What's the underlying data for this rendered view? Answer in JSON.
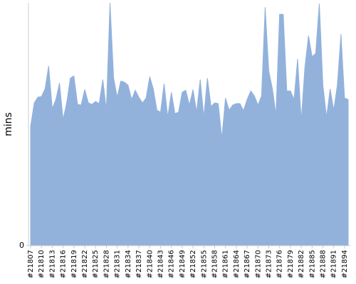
{
  "chart_data": {
    "type": "area",
    "y_label": "mins",
    "color": "#92b2dc",
    "ylim": [
      0,
      100
    ],
    "yticks": [
      0
    ],
    "categories": [
      "#21807",
      null,
      null,
      "#21810",
      null,
      null,
      "#21813",
      null,
      null,
      "#21816",
      null,
      null,
      "#21819",
      null,
      null,
      "#21822",
      null,
      null,
      "#21825",
      null,
      null,
      "#21828",
      null,
      null,
      "#21831",
      null,
      null,
      "#21834",
      null,
      null,
      "#21837",
      null,
      null,
      "#21840",
      null,
      null,
      "#21843",
      null,
      null,
      "#21846",
      null,
      null,
      "#21849",
      null,
      null,
      "#21852",
      null,
      null,
      "#21855",
      null,
      null,
      "#21858",
      null,
      null,
      "#21861",
      null,
      null,
      "#21864",
      null,
      null,
      "#21867",
      null,
      null,
      "#21870",
      null,
      null,
      "#21873",
      null,
      null,
      "#21876",
      null,
      null,
      "#21879",
      null,
      null,
      "#21882",
      null,
      null,
      "#21885",
      null,
      null,
      "#21888",
      null,
      null,
      "#21891",
      null,
      null,
      "#21894",
      null
    ],
    "values": [
      49.1,
      58.8,
      61.1,
      61.4,
      64.6,
      74.0,
      56.4,
      60.2,
      67.0,
      52.0,
      58.8,
      69.0,
      69.9,
      58.2,
      57.9,
      64.3,
      58.8,
      58.2,
      59.4,
      58.5,
      68.4,
      55.8,
      100,
      69.0,
      61.1,
      67.8,
      67.3,
      66.1,
      60.2,
      64.0,
      61.1,
      58.8,
      60.8,
      69.6,
      64.6,
      55.8,
      55.0,
      66.7,
      52.9,
      63.2,
      54.4,
      55.0,
      63.2,
      64.0,
      57.9,
      64.3,
      55.0,
      68.4,
      52.9,
      69.0,
      57.3,
      58.8,
      58.5,
      44.2,
      60.8,
      55.8,
      57.9,
      58.5,
      58.5,
      55.6,
      60.2,
      63.7,
      61.7,
      57.9,
      61.7,
      98.2,
      71.9,
      64.6,
      53.8,
      95.3,
      95.3,
      63.7,
      63.7,
      60.2,
      76.9,
      51.5,
      73.4,
      86.5,
      77.8,
      79.2,
      99.7,
      66.1,
      52.9,
      64.6,
      55.8,
      66.1,
      87.1,
      60.8,
      60.2
    ]
  }
}
